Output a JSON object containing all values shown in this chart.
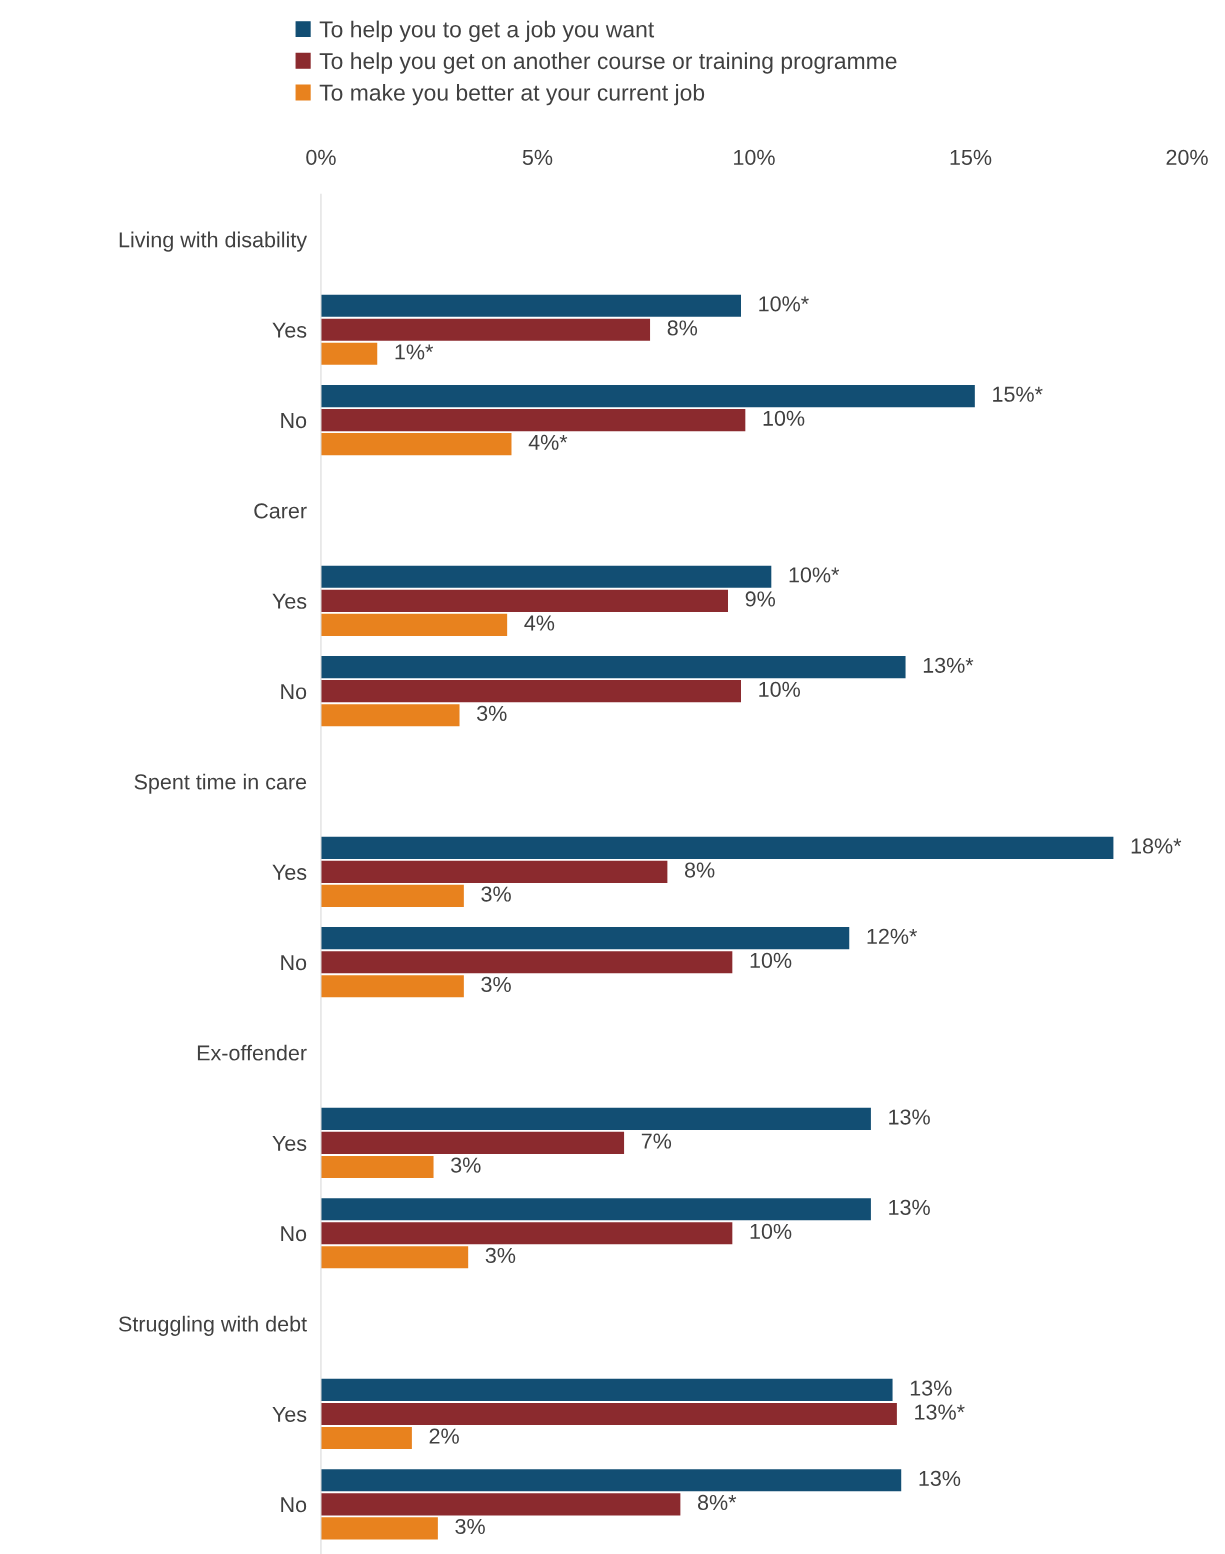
{
  "chart_data": {
    "type": "bar",
    "orientation": "horizontal",
    "categories": [
      "Living with disability",
      "Yes",
      "No",
      "Carer",
      "Yes",
      "No",
      "Spent time in care",
      "Yes",
      "No",
      "Ex-offender",
      "Yes",
      "No",
      "Struggling with debt",
      "Yes",
      "No"
    ],
    "series": [
      {
        "name": "To help you to get a job you want",
        "color": "#124e73",
        "values": [
          null,
          9.7,
          15.1,
          null,
          10.4,
          13.5,
          null,
          18.3,
          12.2,
          null,
          12.7,
          12.7,
          null,
          13.2,
          13.4
        ],
        "value_labels": [
          null,
          "10%*",
          "15%*",
          null,
          "10%*",
          "13%*",
          null,
          "18%*",
          "12%*",
          null,
          "13%",
          "13%",
          null,
          "13%",
          "13%"
        ]
      },
      {
        "name": "To help you get on another course or training programme",
        "color": "#8b2a2e",
        "values": [
          null,
          7.6,
          9.8,
          null,
          9.4,
          9.7,
          null,
          8.0,
          9.5,
          null,
          7.0,
          9.5,
          null,
          13.3,
          8.3
        ],
        "value_labels": [
          null,
          "8%",
          "10%",
          null,
          "9%",
          "10%",
          null,
          "8%",
          "10%",
          null,
          "7%",
          "10%",
          null,
          "13%*",
          "8%*"
        ]
      },
      {
        "name": "To make you better at your current job",
        "color": "#e8821e",
        "values": [
          null,
          1.3,
          4.4,
          null,
          4.3,
          3.2,
          null,
          3.3,
          3.3,
          null,
          2.6,
          3.4,
          null,
          2.1,
          2.7
        ],
        "value_labels": [
          null,
          "1%*",
          "4%*",
          null,
          "4%",
          "3%",
          null,
          "3%",
          "3%",
          null,
          "3%",
          "3%",
          null,
          "2%",
          "3%"
        ]
      }
    ],
    "xlim": [
      0,
      20
    ],
    "xticks": [
      {
        "value": 0,
        "label": "0%"
      },
      {
        "value": 5,
        "label": "5%"
      },
      {
        "value": 10,
        "label": "10%"
      },
      {
        "value": 15,
        "label": "15%"
      },
      {
        "value": 20,
        "label": "20%"
      }
    ],
    "legend": "top",
    "grid": false
  }
}
